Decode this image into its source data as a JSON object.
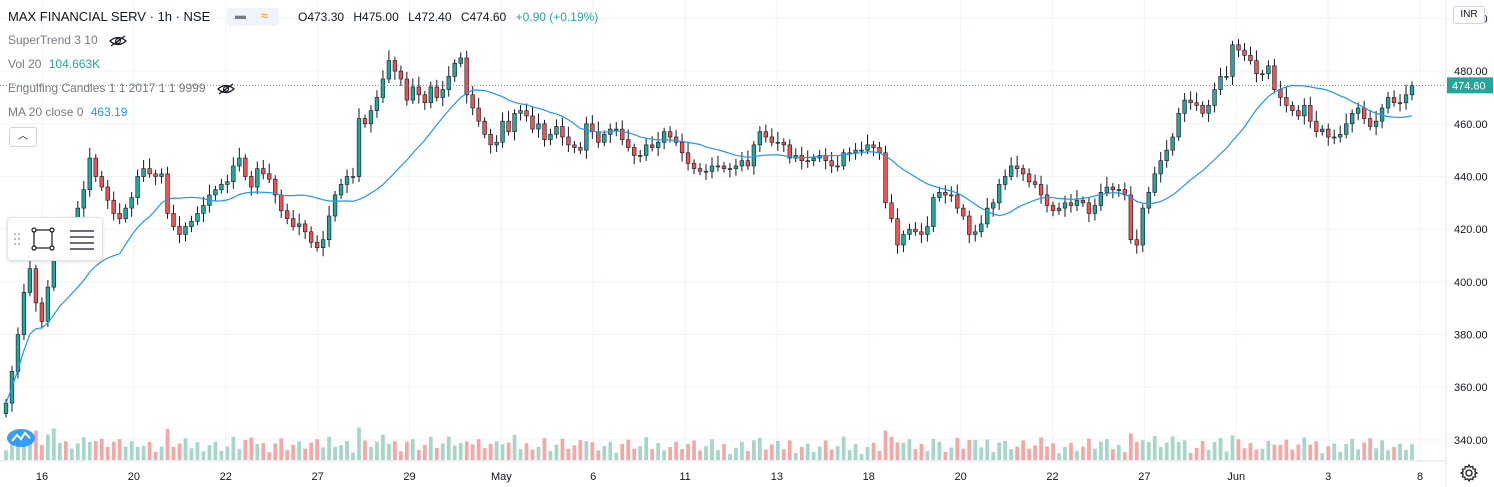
{
  "header": {
    "symbol": "MAX FINANCIAL SERV · 1h · NSE",
    "ohlc": {
      "open": "O473.30",
      "high": "H475.00",
      "low": "L472.40",
      "close": "C474.60",
      "change": "+0.90 (+0.19%)"
    }
  },
  "indicators": [
    {
      "name": "SuperTrend 3 10",
      "value": "",
      "hidden": true
    },
    {
      "name": "Vol 20",
      "value": "104.663K",
      "hidden": false,
      "value_color": "#26a69a"
    },
    {
      "name": "Engulfing Candles 1 1 2017 1 1 9999",
      "value": "",
      "hidden": true
    },
    {
      "name": "MA 20 close 0",
      "value": "463.19",
      "hidden": false,
      "value_color": "#2196f3"
    }
  ],
  "price_scale": {
    "currency": "INR",
    "current": "474.60",
    "ticks": [
      "500.00",
      "480.00",
      "460.00",
      "440.00",
      "420.00",
      "400.00",
      "380.00",
      "360.00",
      "340.00"
    ]
  },
  "time_axis": {
    "labels": [
      "16",
      "20",
      "22",
      "27",
      "29",
      "May",
      "6",
      "11",
      "13",
      "18",
      "20",
      "22",
      "27",
      "Jun",
      "3",
      "8"
    ]
  },
  "colors": {
    "up": "#26a69a",
    "down": "#ef5350",
    "ma": "#2196f3",
    "vol_up": "#a5d6c8",
    "vol_down": "#f5a7a5"
  },
  "icons": {
    "toolbox": [
      "drag-handle-icon",
      "rectangle-icon",
      "lines-icon"
    ],
    "settings": "gear-icon",
    "logo": "tradingview-logo"
  },
  "chart_data": {
    "type": "candlestick",
    "title": "MAX FINANCIAL SERV · 1h · NSE",
    "ylim": [
      332,
      507
    ],
    "grid": true,
    "ma_period": 20,
    "close_series": [
      354,
      366,
      380,
      396,
      405,
      392,
      385,
      398,
      412,
      420,
      416,
      422,
      428,
      435,
      447,
      440,
      436,
      431,
      426,
      424,
      428,
      432,
      440,
      443,
      441,
      440,
      441,
      426,
      421,
      418,
      421,
      423,
      426,
      429,
      433,
      435,
      437,
      438,
      444,
      447,
      440,
      436,
      443,
      441,
      439,
      433,
      427,
      424,
      421,
      422,
      419,
      415,
      413,
      416,
      425,
      433,
      437,
      440,
      440,
      462,
      460,
      465,
      470,
      477,
      484,
      480,
      477,
      469,
      474,
      471,
      468,
      474,
      470,
      473,
      478,
      483,
      485,
      471,
      466,
      461,
      456,
      452,
      453,
      461,
      457,
      464,
      465,
      463,
      458,
      460,
      454,
      456,
      459,
      455,
      452,
      451,
      450,
      460,
      457,
      453,
      456,
      458,
      458,
      454,
      451,
      448,
      448,
      452,
      451,
      453,
      457,
      455,
      453,
      449,
      445,
      443,
      442,
      442,
      444,
      444,
      443,
      443,
      444,
      446,
      444,
      452,
      457,
      455,
      453,
      453,
      452,
      447,
      448,
      446,
      446,
      447,
      448,
      446,
      444,
      444,
      449,
      449,
      450,
      450,
      452,
      451,
      449,
      430,
      424,
      414,
      418,
      420,
      419,
      418,
      421,
      432,
      434,
      433,
      433,
      428,
      425,
      418,
      419,
      422,
      428,
      430,
      437,
      440,
      444,
      443,
      441,
      438,
      437,
      433,
      429,
      427,
      428,
      430,
      429,
      431,
      430,
      426,
      429,
      434,
      436,
      435,
      435,
      433,
      416,
      414,
      428,
      434,
      441,
      446,
      450,
      455,
      464,
      469,
      468,
      467,
      464,
      467,
      473,
      478,
      478,
      490,
      488,
      486,
      484,
      479,
      479,
      482,
      473,
      470,
      467,
      465,
      463,
      467,
      461,
      457,
      458,
      455,
      455,
      456,
      460,
      464,
      466,
      462,
      459,
      461,
      466,
      470,
      468,
      468,
      471,
      474.6
    ]
  }
}
